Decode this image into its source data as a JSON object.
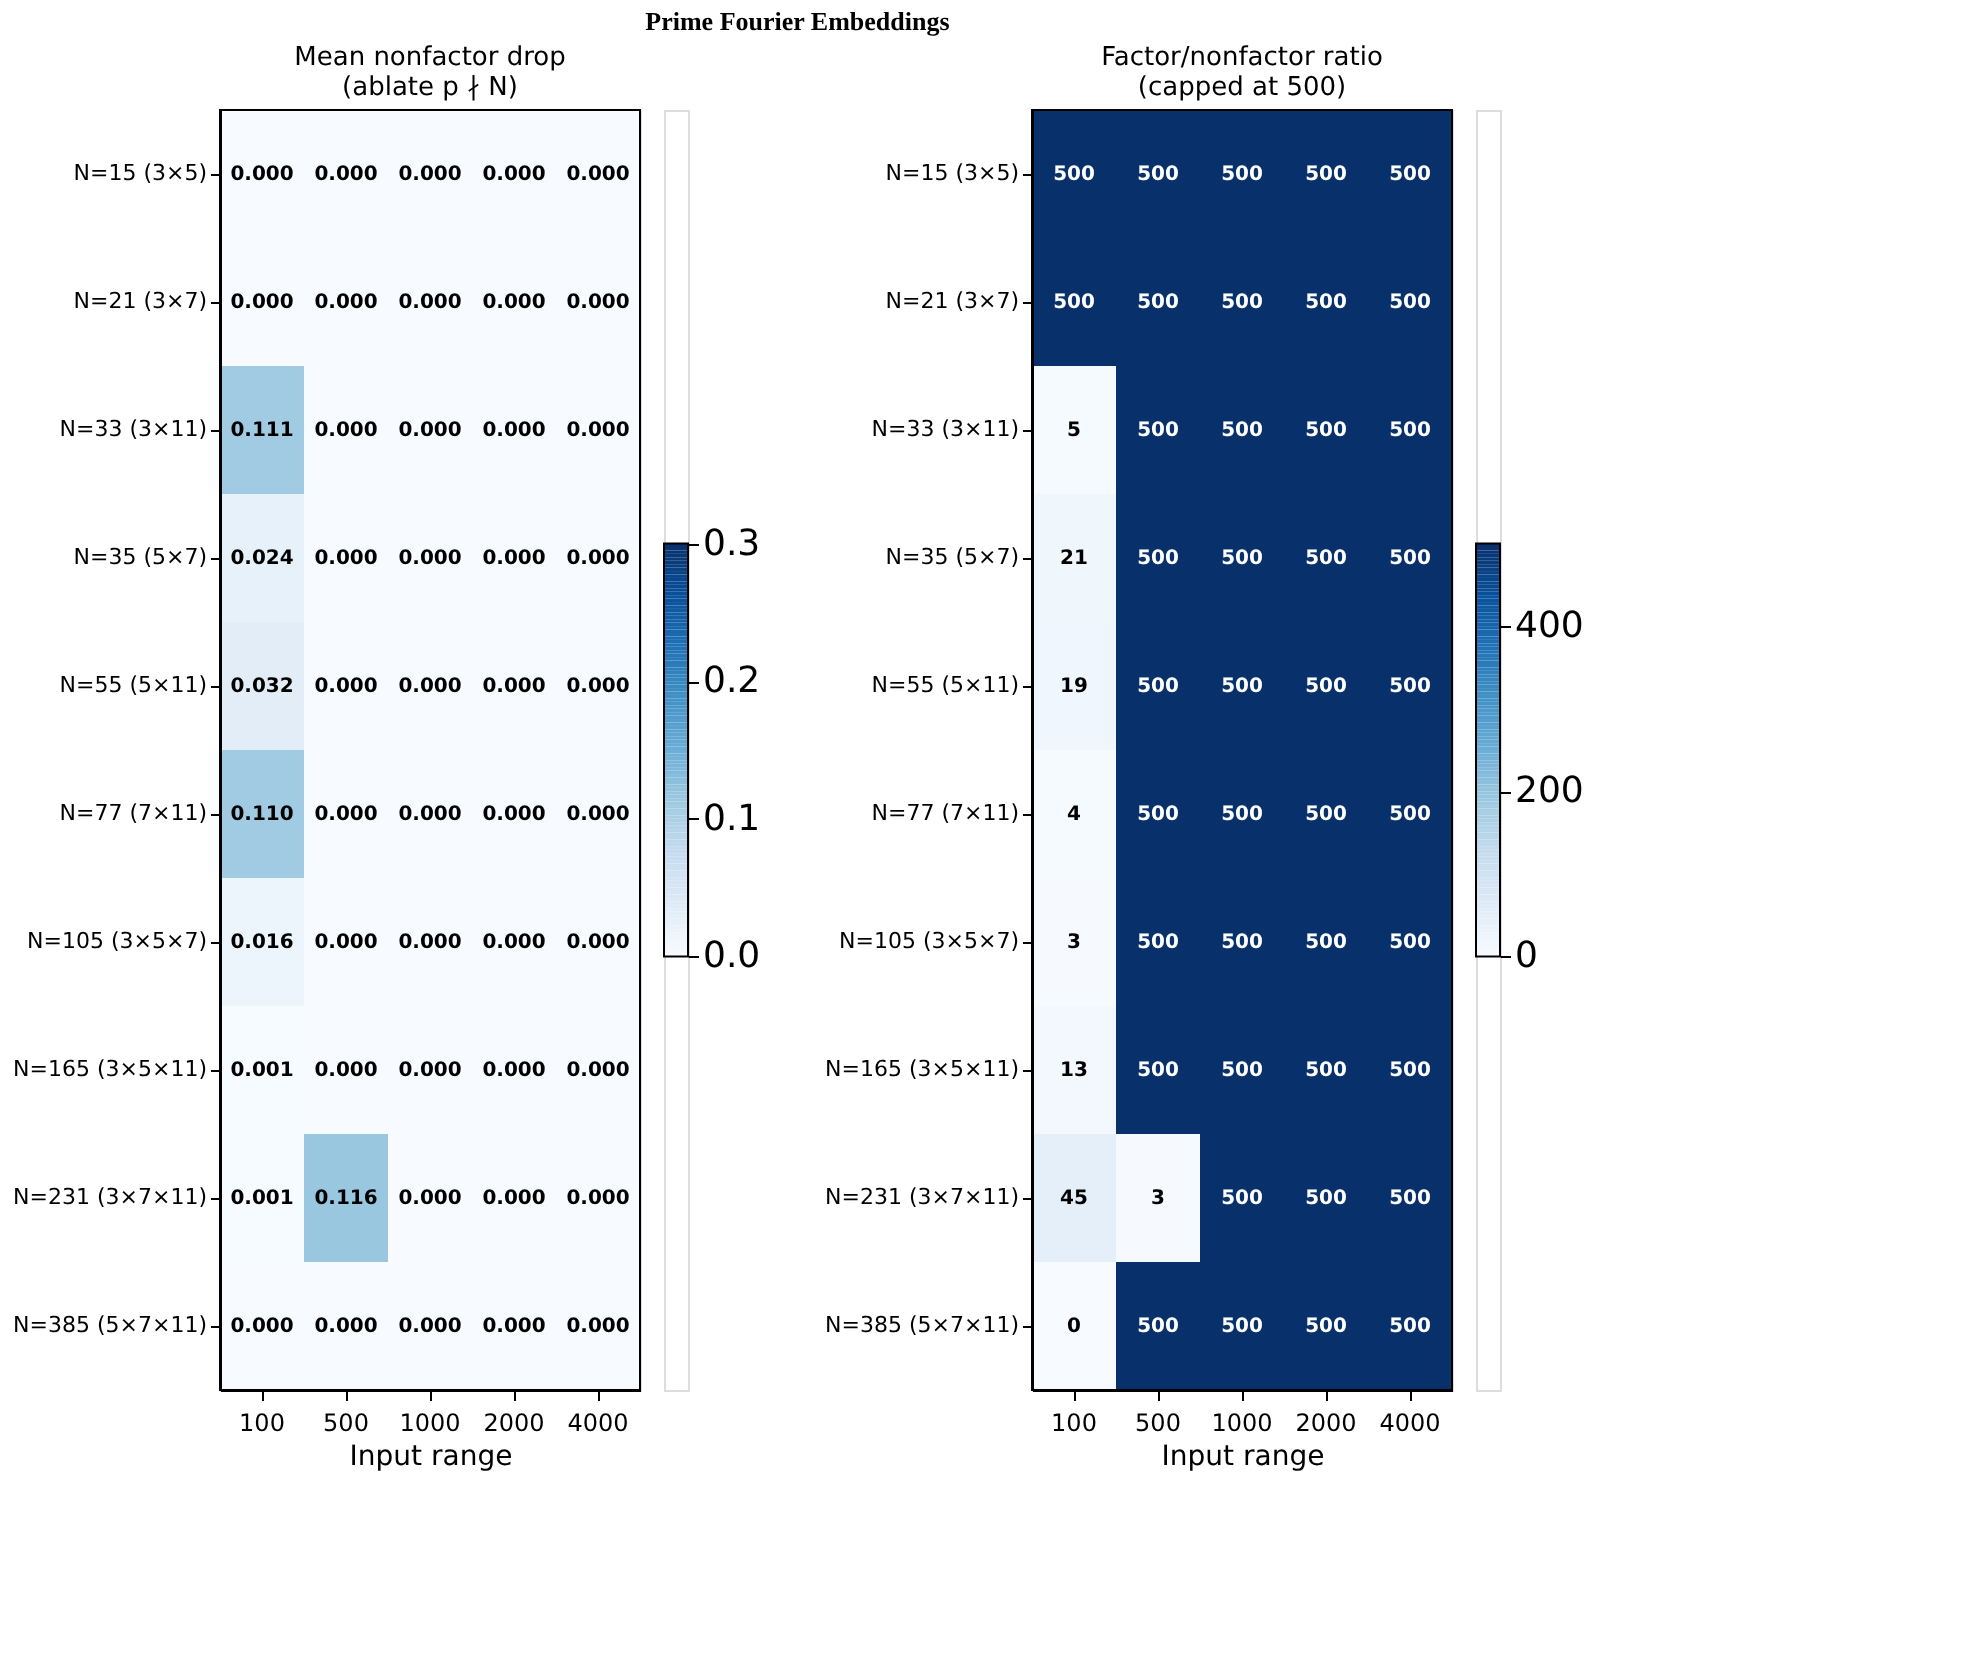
{
  "chart_data": [
    {
      "type": "heatmap",
      "title": "Mean nonfactor drop\n(ablate p ∤ N)",
      "xlabel": "Input range",
      "annotations": [
        "Prime Fourier Embeddings"
      ],
      "categories": [
        "100",
        "500",
        "1000",
        "2000",
        "4000"
      ],
      "y_categories": [
        "N=15 (3×5)",
        "N=21 (3×7)",
        "N=33 (3×11)",
        "N=35 (5×7)",
        "N=55 (5×11)",
        "N=77 (7×11)",
        "N=105 (3×5×7)",
        "N=165 (3×5×11)",
        "N=231 (3×7×11)",
        "N=385 (5×7×11)"
      ],
      "cells": [
        [
          0,
          0,
          0,
          0,
          0
        ],
        [
          0,
          0,
          0,
          0,
          0
        ],
        [
          0.111,
          0,
          0,
          0,
          0
        ],
        [
          0.024,
          0,
          0,
          0,
          0
        ],
        [
          0.032,
          0,
          0,
          0,
          0
        ],
        [
          0.11,
          0,
          0,
          0,
          0
        ],
        [
          0.016,
          0,
          0,
          0,
          0
        ],
        [
          0.001,
          0,
          0,
          0,
          0
        ],
        [
          0.001,
          0.116,
          0,
          0,
          0
        ],
        [
          0,
          0,
          0,
          0,
          0
        ]
      ],
      "cell_labels": [
        [
          "0.000",
          "0.000",
          "0.000",
          "0.000",
          "0.000"
        ],
        [
          "0.000",
          "0.000",
          "0.000",
          "0.000",
          "0.000"
        ],
        [
          "0.111",
          "0.000",
          "0.000",
          "0.000",
          "0.000"
        ],
        [
          "0.024",
          "0.000",
          "0.000",
          "0.000",
          "0.000"
        ],
        [
          "0.032",
          "0.000",
          "0.000",
          "0.000",
          "0.000"
        ],
        [
          "0.110",
          "0.000",
          "0.000",
          "0.000",
          "0.000"
        ],
        [
          "0.016",
          "0.000",
          "0.000",
          "0.000",
          "0.000"
        ],
        [
          "0.001",
          "0.000",
          "0.000",
          "0.000",
          "0.000"
        ],
        [
          "0.001",
          "0.116",
          "0.000",
          "0.000",
          "0.000"
        ],
        [
          "0.000",
          "0.000",
          "0.000",
          "0.000",
          "0.000"
        ]
      ],
      "clim": [
        0,
        0.3
      ],
      "cticks": [
        {
          "value": 0,
          "label": "0.0"
        },
        {
          "value": 0.1,
          "label": "0.1"
        },
        {
          "value": 0.2,
          "label": "0.2"
        },
        {
          "value": 0.3,
          "label": "0.3"
        }
      ]
    },
    {
      "type": "heatmap",
      "title": "Factor/nonfactor ratio\n(capped at 500)",
      "xlabel": "Input range",
      "categories": [
        "100",
        "500",
        "1000",
        "2000",
        "4000"
      ],
      "y_categories": [
        "N=15 (3×5)",
        "N=21 (3×7)",
        "N=33 (3×11)",
        "N=35 (5×7)",
        "N=55 (5×11)",
        "N=77 (7×11)",
        "N=105 (3×5×7)",
        "N=165 (3×5×11)",
        "N=231 (3×7×11)",
        "N=385 (5×7×11)"
      ],
      "cells": [
        [
          500,
          500,
          500,
          500,
          500
        ],
        [
          500,
          500,
          500,
          500,
          500
        ],
        [
          5,
          500,
          500,
          500,
          500
        ],
        [
          21,
          500,
          500,
          500,
          500
        ],
        [
          19,
          500,
          500,
          500,
          500
        ],
        [
          4,
          500,
          500,
          500,
          500
        ],
        [
          3,
          500,
          500,
          500,
          500
        ],
        [
          13,
          500,
          500,
          500,
          500
        ],
        [
          45,
          3,
          500,
          500,
          500
        ],
        [
          0,
          500,
          500,
          500,
          500
        ]
      ],
      "clim": [
        0,
        500
      ],
      "cticks": [
        0,
        200,
        400
      ],
      "data_labels": true
    }
  ]
}
